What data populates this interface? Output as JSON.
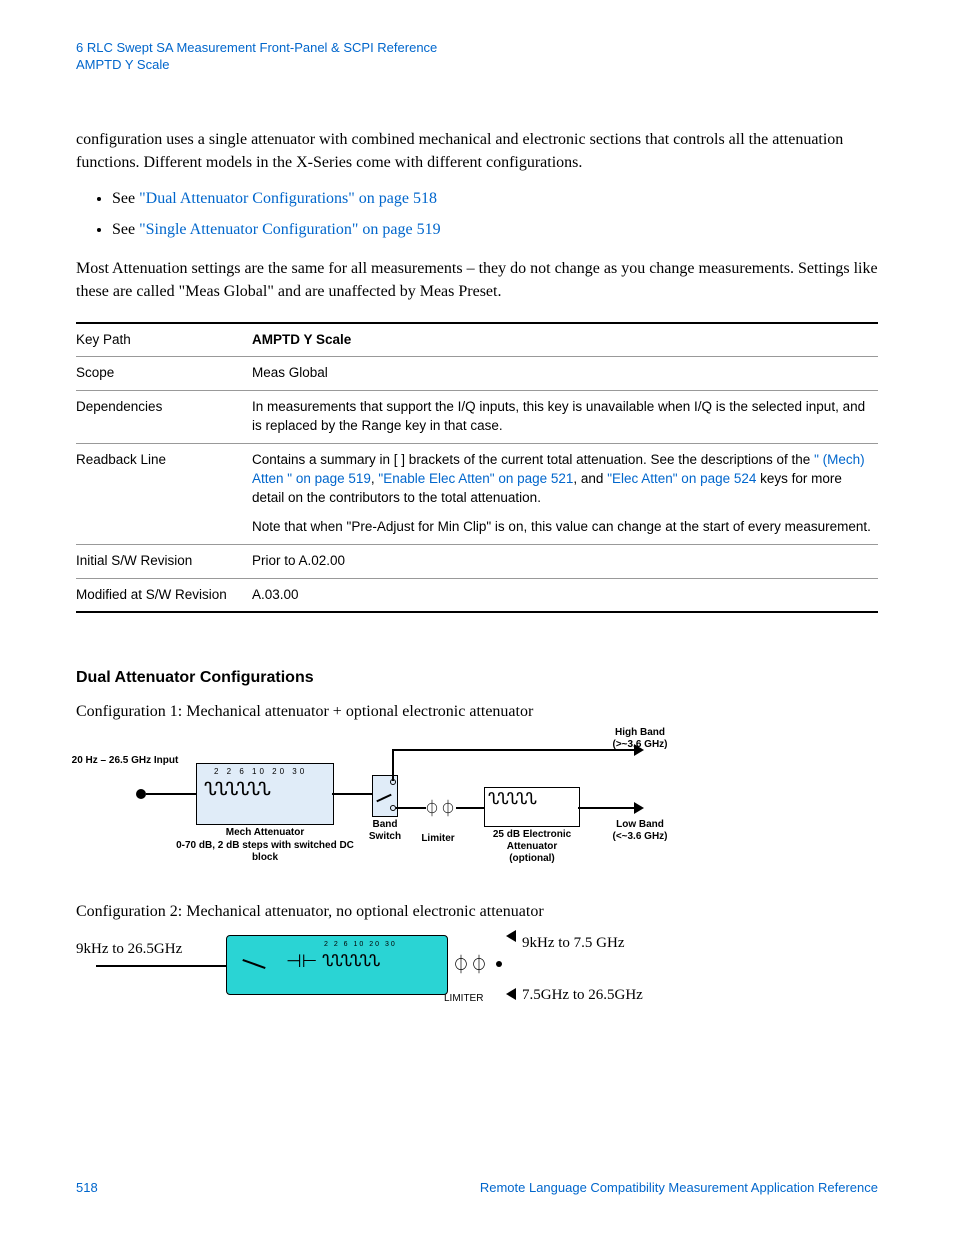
{
  "header": {
    "line1": "6  RLC Swept SA Measurement Front-Panel & SCPI Reference",
    "line2": "AMPTD Y Scale"
  },
  "para1": "configuration uses a single attenuator with combined mechanical and electronic sections that controls all the attenuation functions.  Different models in the X-Series come with different configurations.",
  "bullets": {
    "b1_pre": "See ",
    "b1_link": "\"Dual Attenuator Configurations\" on page 518",
    "b2_pre": "See ",
    "b2_link": "\"Single Attenuator Configuration\" on page 519"
  },
  "para2": "Most Attenuation settings are the same for all measurements – they do not change as you change measurements.   Settings like these are called \"Meas Global\" and are unaffected by Meas Preset.",
  "table": {
    "r1": {
      "label": "Key Path",
      "value": "AMPTD Y Scale"
    },
    "r2": {
      "label": "Scope",
      "value": "Meas Global"
    },
    "r3": {
      "label": "Dependencies",
      "value": "In measurements that support the I/Q inputs, this key is unavailable when I/Q is the selected input, and is replaced by the Range key in that case."
    },
    "r4": {
      "label": "Readback Line",
      "pre": "Contains a summary in [ ] brackets of the current total attenuation. See the descriptions of the ",
      "link1": "\" (Mech) Atten \" on page 519",
      "mid1": ", ",
      "link2": "\"Enable Elec Atten\" on page 521",
      "mid2": ", and ",
      "link3": "\"Elec Atten\" on page 524",
      "post": " keys for more detail on the contributors to the total attenuation.",
      "note": "Note that when \"Pre-Adjust for Min Clip\" is on, this value can change at the start of every measurement."
    },
    "r5": {
      "label": "Initial S/W Revision",
      "value": "Prior to A.02.00"
    },
    "r6": {
      "label": "Modified at S/W Revision",
      "value": "A.03.00"
    }
  },
  "section_heading": "Dual Attenuator Configurations",
  "config1_text": "Configuration 1:  Mechanical attenuator + optional electronic attenuator",
  "config2_text": "Configuration 2:  Mechanical attenuator, no optional electronic attenuator",
  "diagram1": {
    "input_label": "20 Hz – 26.5 GHz Input",
    "mech_nums": "2   2   6  10  20  30",
    "mech_label": "Mech Attenuator\n0-70 dB, 2 dB steps with switched DC block",
    "band_label": "Band Switch",
    "limiter_label": "Limiter",
    "elec_label": "25 dB Electronic Attenuator (optional)",
    "highband_label": "High Band (>~3.6 GHz)",
    "lowband_label": "Low Band (<~3.6 GHz)",
    "box_color": "#e0ecf8"
  },
  "diagram2": {
    "input_label": "9kHz to 26.5GHz",
    "limiter_label": "LIMITER",
    "top_out_label": "9kHz to 7.5 GHz",
    "bottom_out_label": "7.5GHz to 26.5GHz",
    "nums": "2  2  6  10  20  30",
    "box_color": "#2ad4d4"
  },
  "footer": {
    "page": "518",
    "doc": "Remote Language Compatibility Measurement Application Reference"
  }
}
